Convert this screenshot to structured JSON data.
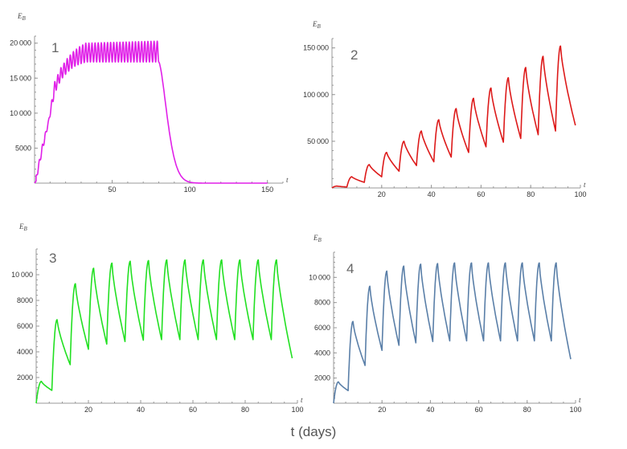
{
  "figure": {
    "xcaption": "t (days)"
  },
  "chart_data": [
    {
      "type": "line",
      "panel_label": "1",
      "ylabel": "E",
      "ylabel_sub": "B",
      "xlabel": "t",
      "xlim": [
        0,
        160
      ],
      "ylim": [
        0,
        21000
      ],
      "xticks": [
        50,
        100,
        150
      ],
      "yticks": [
        5000,
        10000,
        15000,
        20000
      ],
      "color": "#e020e8",
      "series": [
        {
          "model": "cycles",
          "period": 2.0,
          "start": 1,
          "end": 80,
          "peak_points": [
            [
              1,
              1000
            ],
            [
              5,
              5500
            ],
            [
              9,
              9000
            ],
            [
              13,
              14500
            ],
            [
              17,
              16500
            ],
            [
              21,
              17800
            ],
            [
              25,
              18800
            ],
            [
              29,
              19500
            ],
            [
              33,
              20000
            ],
            [
              80,
              20300
            ]
          ],
          "trough_points": [
            [
              1,
              300
            ],
            [
              5,
              4500
            ],
            [
              9,
              8500
            ],
            [
              13,
              12800
            ],
            [
              17,
              14800
            ],
            [
              21,
              15800
            ],
            [
              25,
              16600
            ],
            [
              29,
              17000
            ],
            [
              33,
              17300
            ],
            [
              80,
              17300
            ]
          ],
          "decay": {
            "to": 110,
            "tau": 7.5
          },
          "tail_end": 150
        }
      ]
    },
    {
      "type": "line",
      "panel_label": "2",
      "ylabel": "E",
      "ylabel_sub": "B",
      "xlabel": "t",
      "xlim": [
        0,
        100
      ],
      "ylim": [
        0,
        160000
      ],
      "xticks": [
        20,
        40,
        60,
        80,
        100
      ],
      "yticks": [
        50000,
        100000,
        150000
      ],
      "color": "#dd1a1a",
      "series": [
        {
          "model": "peaks",
          "points": [
            [
              0,
              0
            ],
            [
              2,
              2000
            ],
            [
              6,
              1000
            ],
            [
              8,
              12000
            ],
            [
              13,
              6000
            ],
            [
              15,
              25000
            ],
            [
              20,
              12000
            ],
            [
              22,
              38000
            ],
            [
              27,
              18000
            ],
            [
              29,
              50000
            ],
            [
              34,
              24000
            ],
            [
              36,
              61000
            ],
            [
              41,
              28000
            ],
            [
              43,
              73000
            ],
            [
              48,
              33000
            ],
            [
              50,
              85000
            ],
            [
              55,
              38000
            ],
            [
              57,
              96000
            ],
            [
              62,
              44000
            ],
            [
              64,
              107000
            ],
            [
              69,
              49000
            ],
            [
              71,
              118000
            ],
            [
              76,
              53000
            ],
            [
              78,
              129000
            ],
            [
              83,
              57000
            ],
            [
              85,
              141000
            ],
            [
              90,
              61000
            ],
            [
              92,
              152000
            ],
            [
              98,
              67000
            ]
          ]
        }
      ]
    },
    {
      "type": "line",
      "panel_label": "3",
      "ylabel": "E",
      "ylabel_sub": "B",
      "xlabel": "t",
      "xlim": [
        0,
        100
      ],
      "ylim": [
        0,
        12000
      ],
      "xticks": [
        20,
        40,
        60,
        80,
        100
      ],
      "yticks": [
        2000,
        4000,
        6000,
        8000,
        10000
      ],
      "color": "#22e022",
      "series": [
        {
          "model": "peaks",
          "points": [
            [
              0,
              0
            ],
            [
              2,
              1700
            ],
            [
              6,
              1000
            ],
            [
              8,
              6500
            ],
            [
              13,
              3000
            ],
            [
              15,
              9300
            ],
            [
              20,
              4200
            ],
            [
              22,
              10500
            ],
            [
              27,
              4600
            ],
            [
              29,
              10900
            ],
            [
              34,
              4800
            ],
            [
              36,
              11050
            ],
            [
              41,
              4900
            ],
            [
              43,
              11100
            ],
            [
              48,
              4950
            ],
            [
              50,
              11150
            ],
            [
              55,
              4950
            ],
            [
              57,
              11150
            ],
            [
              62,
              4950
            ],
            [
              64,
              11150
            ],
            [
              69,
              4950
            ],
            [
              71,
              11150
            ],
            [
              76,
              4950
            ],
            [
              78,
              11150
            ],
            [
              83,
              4950
            ],
            [
              85,
              11150
            ],
            [
              90,
              4950
            ],
            [
              92,
              11150
            ],
            [
              98,
              3500
            ]
          ]
        }
      ]
    },
    {
      "type": "line",
      "panel_label": "4",
      "ylabel": "E",
      "ylabel_sub": "B",
      "xlabel": "t",
      "xlim": [
        0,
        100
      ],
      "ylim": [
        0,
        12000
      ],
      "xticks": [
        20,
        40,
        60,
        80,
        100
      ],
      "yticks": [
        2000,
        4000,
        6000,
        8000,
        10000
      ],
      "color": "#5a7fa8",
      "series": [
        {
          "model": "peaks",
          "points": [
            [
              0,
              0
            ],
            [
              2,
              1700
            ],
            [
              6,
              1000
            ],
            [
              8,
              6500
            ],
            [
              13,
              3000
            ],
            [
              15,
              9300
            ],
            [
              20,
              4200
            ],
            [
              22,
              10500
            ],
            [
              27,
              4600
            ],
            [
              29,
              10900
            ],
            [
              34,
              4800
            ],
            [
              36,
              11050
            ],
            [
              41,
              4900
            ],
            [
              43,
              11100
            ],
            [
              48,
              4950
            ],
            [
              50,
              11150
            ],
            [
              55,
              4950
            ],
            [
              57,
              11150
            ],
            [
              62,
              4950
            ],
            [
              64,
              11150
            ],
            [
              69,
              4950
            ],
            [
              71,
              11150
            ],
            [
              76,
              4950
            ],
            [
              78,
              11150
            ],
            [
              83,
              4950
            ],
            [
              85,
              11150
            ],
            [
              90,
              4950
            ],
            [
              92,
              11150
            ],
            [
              98,
              3500
            ]
          ]
        }
      ]
    }
  ]
}
